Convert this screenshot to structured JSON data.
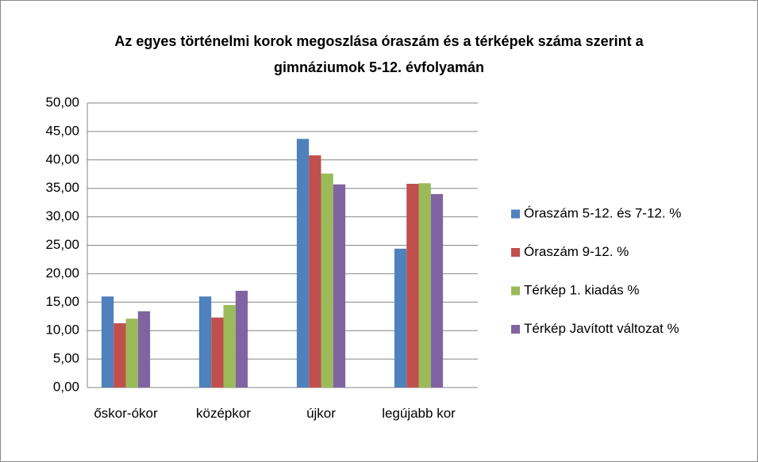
{
  "chart_data": {
    "type": "bar",
    "title": "Az egyes történelmi korok megoszlása óraszám és a térképek száma szerint a gimnáziumok 5-12. évfolyamán",
    "categories": [
      "őskor-ókor",
      "középkor",
      "újkor",
      "legújabb kor"
    ],
    "series": [
      {
        "name": "Óraszám 5-12. és 7-12. %",
        "color": "#4f81bd",
        "values": [
          16.0,
          16.0,
          43.7,
          24.4
        ]
      },
      {
        "name": "Óraszám 9-12. %",
        "color": "#c0504d",
        "values": [
          11.3,
          12.3,
          40.8,
          35.8
        ]
      },
      {
        "name": "Térkép 1. kiadás %",
        "color": "#9bbb59",
        "values": [
          12.1,
          14.5,
          37.6,
          35.9
        ]
      },
      {
        "name": "Térkép Javított változat %",
        "color": "#8064a2",
        "values": [
          13.4,
          17.0,
          35.7,
          34.0
        ]
      }
    ],
    "ylim": [
      0,
      50
    ],
    "yticks": [
      {
        "value": 0,
        "label": "0,00"
      },
      {
        "value": 5,
        "label": "5,00"
      },
      {
        "value": 10,
        "label": "10,00"
      },
      {
        "value": 15,
        "label": "15,00"
      },
      {
        "value": 20,
        "label": "20,00"
      },
      {
        "value": 25,
        "label": "25,00"
      },
      {
        "value": 30,
        "label": "30,00"
      },
      {
        "value": 35,
        "label": "35,00"
      },
      {
        "value": 40,
        "label": "40,00"
      },
      {
        "value": 45,
        "label": "45,00"
      },
      {
        "value": 50,
        "label": "50,00"
      }
    ],
    "grid": true,
    "legend": "right"
  }
}
